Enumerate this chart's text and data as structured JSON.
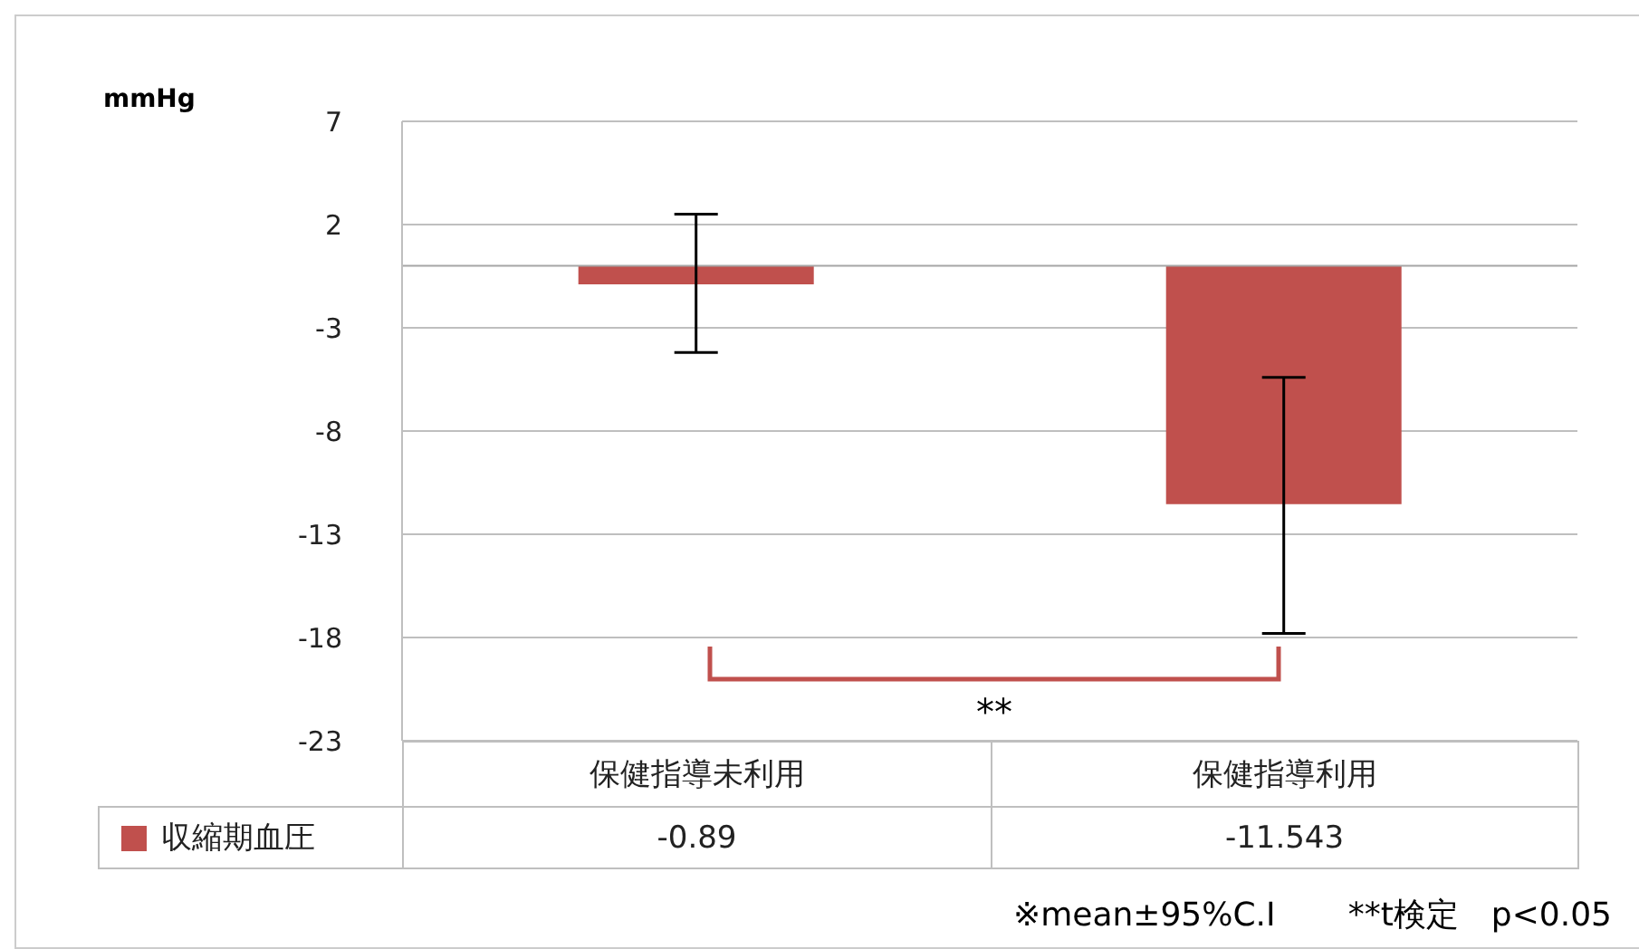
{
  "chart_data": {
    "type": "bar",
    "ylabel": "mmHg",
    "categories": [
      "保健指導未利用",
      "保健指導利用"
    ],
    "series": [
      {
        "name": "収縮期血圧",
        "color": "#c0504d",
        "values": [
          -0.89,
          -11.543
        ],
        "errors": [
          [
            -4.2,
            2.5
          ],
          [
            -17.8,
            -5.4
          ]
        ]
      }
    ],
    "ylim": [
      -23,
      7
    ],
    "yticks": [
      -23,
      -18,
      -13,
      -8,
      -3,
      2,
      7
    ],
    "grid": "y",
    "legend": "bottom",
    "data_labels": true,
    "ref_lines": [
      {
        "axis": "y",
        "value": 0,
        "color": "#a6a6a6"
      }
    ],
    "annotations": [
      "**",
      "※mean±95%C.I",
      "**t検定　p<0.05"
    ]
  }
}
